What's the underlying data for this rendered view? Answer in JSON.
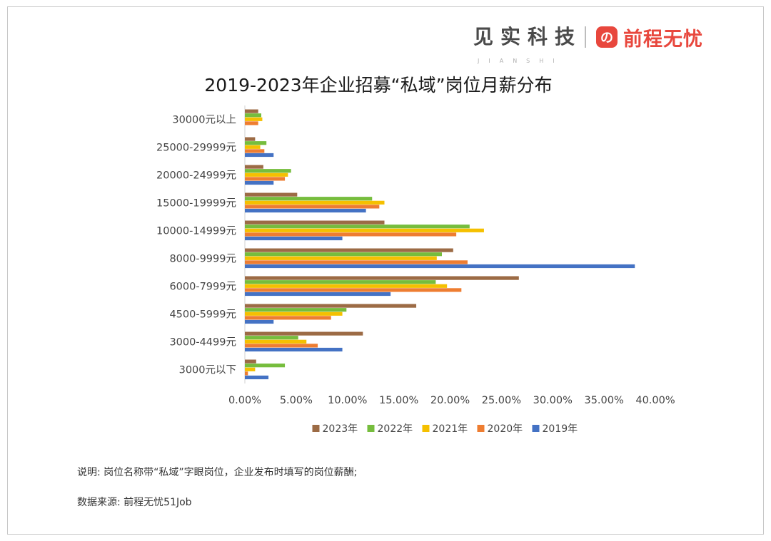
{
  "brand": {
    "jianshi": "见实科技",
    "jianshi_sub": "JIANSHI",
    "logo_glyph": "の",
    "qiancheng": "前程无忧"
  },
  "notes": {
    "explanation": "说明: 岗位名称带“私域”字眼岗位，企业发布时填写的岗位薪酬;",
    "source": "数据来源: 前程无忧51Job"
  },
  "chart_data": {
    "type": "bar",
    "orientation": "horizontal",
    "title": "2019-2023年企业招募“私域”岗位月薪分布",
    "categories": [
      "30000元以上",
      "25000-29999元",
      "20000-24999元",
      "15000-19999元",
      "10000-14999元",
      "8000-9999元",
      "6000-7999元",
      "4500-5999元",
      "3000-4499元",
      "3000元以下"
    ],
    "series": [
      {
        "name": "2023年",
        "color": "#9c6b45",
        "values": [
          1.3,
          1.0,
          1.8,
          5.1,
          13.6,
          20.3,
          26.7,
          16.7,
          11.5,
          1.1
        ]
      },
      {
        "name": "2022年",
        "color": "#76bd3d",
        "values": [
          1.6,
          2.1,
          4.5,
          12.4,
          21.9,
          19.2,
          18.6,
          9.9,
          5.2,
          3.9
        ]
      },
      {
        "name": "2021年",
        "color": "#f5c000",
        "values": [
          1.7,
          1.5,
          4.2,
          13.6,
          23.3,
          18.7,
          19.7,
          9.5,
          6.0,
          1.0
        ]
      },
      {
        "name": "2020年",
        "color": "#ee7d31",
        "values": [
          1.3,
          1.9,
          3.9,
          13.1,
          20.6,
          21.7,
          21.1,
          8.4,
          7.1,
          0.3
        ]
      },
      {
        "name": "2019年",
        "color": "#4472c4",
        "values": [
          0,
          2.8,
          2.8,
          11.8,
          9.5,
          38.0,
          14.2,
          2.8,
          9.5,
          2.3
        ]
      }
    ],
    "xlim": [
      0,
      40
    ],
    "xticks": [
      "0.00%",
      "5.00%",
      "10.00%",
      "15.00%",
      "20.00%",
      "25.00%",
      "30.00%",
      "35.00%",
      "40.00%"
    ],
    "legend_order": [
      "2023年",
      "2022年",
      "2021年",
      "2020年",
      "2019年"
    ],
    "legend_position": "bottom",
    "grid": false
  }
}
